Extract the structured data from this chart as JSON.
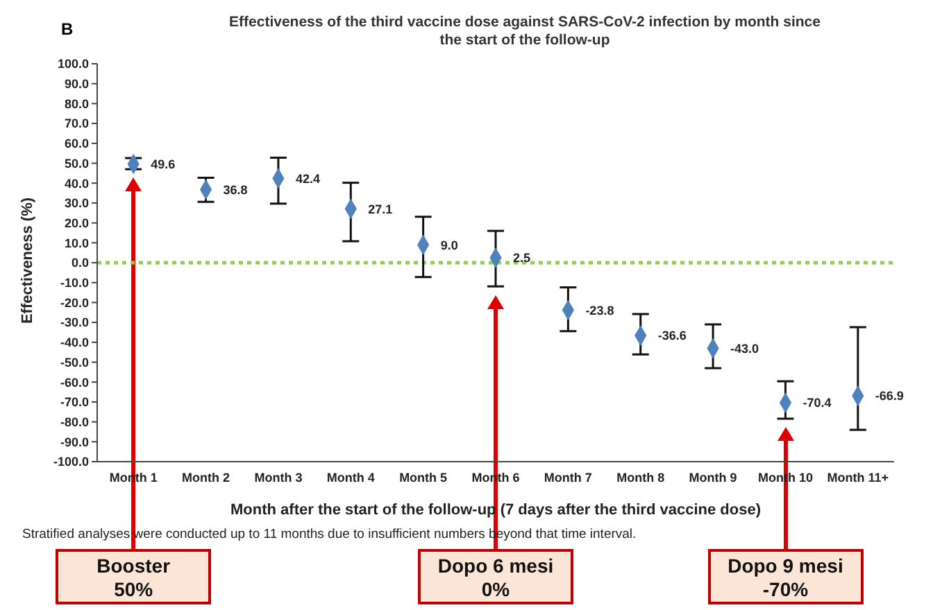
{
  "chart_data": {
    "type": "scatter",
    "title": "Effectiveness of the third vaccine dose against SARS-CoV-2 infection by month since the start of the follow-up",
    "xlabel": "Month after the start of the follow-up (7 days after the third vaccine dose)",
    "ylabel": "Effectiveness (%)",
    "categories": [
      "Month 1",
      "Month 2",
      "Month 3",
      "Month 4",
      "Month 5",
      "Month 6",
      "Month 7",
      "Month 8",
      "Month 9",
      "Month 10",
      "Month 11+"
    ],
    "values": [
      49.6,
      36.8,
      42.4,
      27.1,
      9.0,
      2.5,
      -23.8,
      -36.6,
      -43.0,
      -70.4,
      -66.9
    ],
    "value_labels": [
      "49.6",
      "36.8",
      "42.4",
      "27.1",
      "9.0",
      "2.5",
      "-23.8",
      "-36.6",
      "-43.0",
      "-70.4",
      "-66.9"
    ],
    "errors": [
      [
        47.0,
        52.6
      ],
      [
        30.6,
        42.7
      ],
      [
        29.7,
        52.8
      ],
      [
        10.8,
        40.2
      ],
      [
        -7.2,
        23.1
      ],
      [
        -11.9,
        16.0
      ],
      [
        -34.4,
        -12.4
      ],
      [
        -46.1,
        -25.8
      ],
      [
        -53.0,
        -31.0
      ],
      [
        -78.4,
        -59.6
      ],
      [
        -84.0,
        -32.4
      ]
    ],
    "color": "#4f81bd",
    "marker": "diamond",
    "legend": false,
    "grid": false,
    "ylim": [
      -100,
      100
    ],
    "yticks": [
      {
        "value": -100,
        "label": "-100.0"
      },
      {
        "value": -90,
        "label": "-90.0"
      },
      {
        "value": -80,
        "label": "-80.0"
      },
      {
        "value": -70,
        "label": "-70.0"
      },
      {
        "value": -60,
        "label": "-60.0"
      },
      {
        "value": -50,
        "label": "-50.0"
      },
      {
        "value": -40,
        "label": "-40.0"
      },
      {
        "value": -30,
        "label": "-30.0"
      },
      {
        "value": -20,
        "label": "-20.0"
      },
      {
        "value": -10,
        "label": "-10.0"
      },
      {
        "value": 0,
        "label": "0.0"
      },
      {
        "value": 10,
        "label": "10.0"
      },
      {
        "value": 20,
        "label": "20.0"
      },
      {
        "value": 30,
        "label": "30.0"
      },
      {
        "value": 40,
        "label": "40.0"
      },
      {
        "value": 50,
        "label": "50.0"
      },
      {
        "value": 60,
        "label": "60.0"
      },
      {
        "value": 70,
        "label": "70.0"
      },
      {
        "value": 80,
        "label": "80.0"
      },
      {
        "value": 90,
        "label": "90.0"
      },
      {
        "value": 100,
        "label": "100.0"
      }
    ],
    "ref_lines": [
      {
        "axis": "y",
        "value": 0,
        "color": "#92d050",
        "line_style": "dotted"
      }
    ],
    "annotations": [
      "B",
      "Stratified analyses were conducted up to 11 months due to insufficient numbers beyond that time interval.",
      "Booster\n50%",
      "Dopo 6 mesi\n0%",
      "Dopo 9 mesi\n-70%"
    ]
  }
}
